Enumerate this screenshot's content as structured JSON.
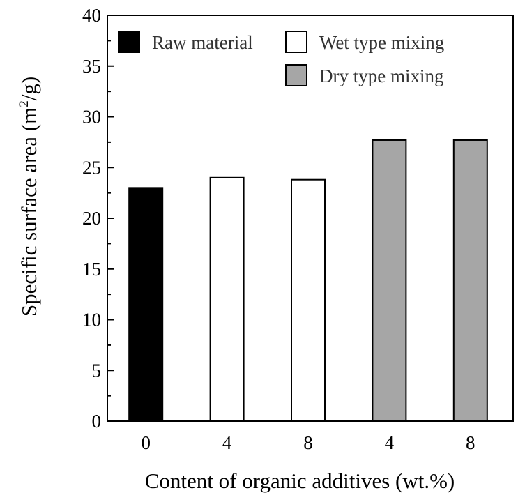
{
  "chart_data": {
    "type": "bar",
    "categories": [
      "0",
      "4",
      "8",
      "4",
      "8"
    ],
    "values": [
      23.0,
      24.0,
      23.8,
      27.7,
      27.7
    ],
    "bar_groups": [
      "raw",
      "wet",
      "wet",
      "dry",
      "dry"
    ],
    "xlabel": "Content of organic additives (wt.%)",
    "ylabel": {
      "main": "Specific surface area (m",
      "sup": "2",
      "tail": "/g)"
    },
    "ylim": [
      0,
      40
    ],
    "yticks": [
      "0",
      "5",
      "10",
      "15",
      "20",
      "25",
      "30",
      "35",
      "40"
    ],
    "grid": false,
    "legend_placement": "top",
    "legend": [
      {
        "key": "raw",
        "label": "Raw material",
        "color": "#000000"
      },
      {
        "key": "wet",
        "label": "Wet type mixing",
        "color": "#ffffff"
      },
      {
        "key": "dry",
        "label": "Dry type mixing",
        "color": "#a6a6a6"
      }
    ]
  }
}
